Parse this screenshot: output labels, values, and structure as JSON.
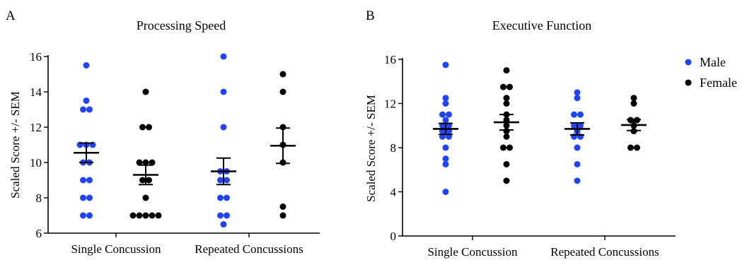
{
  "figure": {
    "legend": [
      {
        "label": "Male",
        "color": "#1f44ff"
      },
      {
        "label": "Female",
        "color": "#000000"
      }
    ]
  },
  "chart_data": [
    {
      "type": "scatter",
      "panel_label": "A",
      "title": "Processing Speed",
      "ylabel": "Scaled Score +/- SEM",
      "ylim": [
        6,
        16
      ],
      "yticks": [
        6,
        8,
        10,
        12,
        14,
        16
      ],
      "categories": [
        "Single Concussion",
        "Repeated Concussions"
      ],
      "series": [
        {
          "name": "Male",
          "color": "#1f44ff",
          "groups": [
            {
              "category": "Single Concussion",
              "values": [
                15.5,
                13.5,
                13,
                13,
                11,
                11,
                11,
                10,
                10,
                9,
                9,
                8,
                8,
                7,
                7
              ],
              "mean": 10.55,
              "sem": 0.55
            },
            {
              "category": "Repeated Concussions",
              "values": [
                16,
                14,
                12,
                9.5,
                9.5,
                9,
                9,
                8,
                8,
                7,
                7,
                6.5
              ],
              "mean": 9.5,
              "sem": 0.75
            }
          ]
        },
        {
          "name": "Female",
          "color": "#000000",
          "groups": [
            {
              "category": "Single Concussion",
              "values": [
                14,
                12,
                12,
                10,
                10,
                10,
                9,
                9,
                8,
                7,
                7,
                7,
                7,
                7
              ],
              "mean": 9.3,
              "sem": 0.55
            },
            {
              "category": "Repeated Concussions",
              "values": [
                15,
                14,
                12,
                11,
                10,
                7.5,
                7
              ],
              "mean": 10.95,
              "sem": 1.0
            }
          ]
        }
      ]
    },
    {
      "type": "scatter",
      "panel_label": "B",
      "title": "Executive Function",
      "ylabel": "Scaled Score +/- SEM",
      "ylim": [
        0,
        16
      ],
      "yticks": [
        0,
        4,
        8,
        12,
        16
      ],
      "categories": [
        "Single Concussion",
        "Repeated Concussions"
      ],
      "series": [
        {
          "name": "Male",
          "color": "#1f44ff",
          "groups": [
            {
              "category": "Single Concussion",
              "values": [
                15.5,
                12.5,
                12,
                11,
                11,
                10.5,
                10,
                10,
                9.5,
                9.5,
                9,
                9,
                8,
                7,
                6.5,
                4
              ],
              "mean": 9.7,
              "sem": 0.5
            },
            {
              "category": "Repeated Concussions",
              "values": [
                13,
                12.5,
                11,
                11,
                10,
                10,
                9.5,
                9,
                9,
                8,
                6.5,
                5
              ],
              "mean": 9.7,
              "sem": 0.55
            }
          ]
        },
        {
          "name": "Female",
          "color": "#000000",
          "groups": [
            {
              "category": "Single Concussion",
              "values": [
                15,
                13.5,
                13.5,
                12.5,
                12,
                11,
                10.5,
                10,
                9.5,
                9,
                8,
                8,
                6.5,
                5
              ],
              "mean": 10.3,
              "sem": 0.7
            },
            {
              "category": "Repeated Concussions",
              "values": [
                12.5,
                12,
                10.5,
                10.5,
                10,
                9.5,
                8,
                8
              ],
              "mean": 10.05,
              "sem": 0.5
            }
          ]
        }
      ]
    }
  ]
}
